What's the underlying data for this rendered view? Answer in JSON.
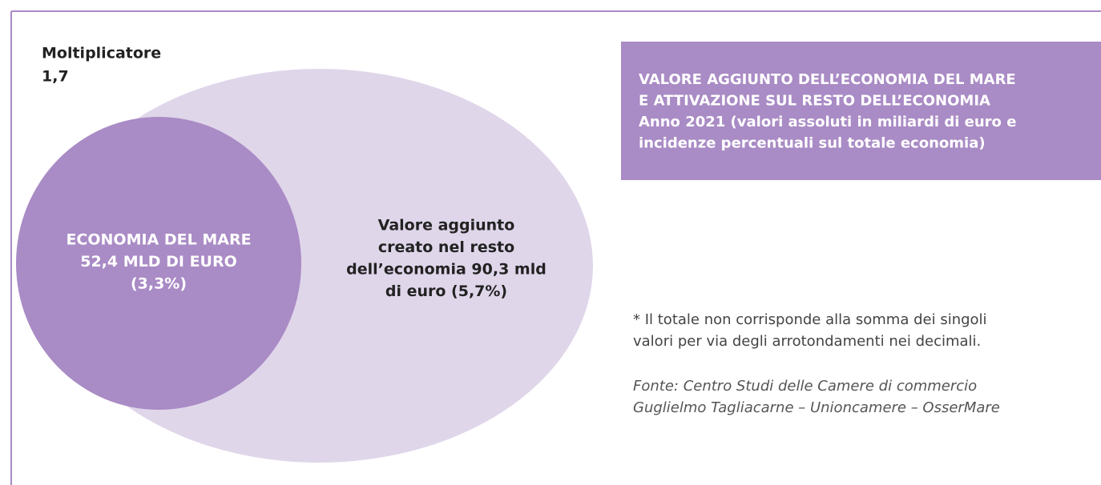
{
  "multiplier": {
    "label": "Moltiplicatore",
    "value": "1,7"
  },
  "inner": {
    "lines": [
      "ECONOMIA DEL MARE",
      "52,4 MLD DI EURO",
      "(3,3%)"
    ]
  },
  "outer": {
    "lines": [
      "Valore aggiunto",
      "creato nel resto",
      "dell’economia 90,3 mld",
      "di euro (5,7%)"
    ]
  },
  "title_box": {
    "lines": [
      "VALORE AGGIUNTO DELL’ECONOMIA DEL MARE",
      "E ATTIVAZIONE SUL RESTO DELL’ECONOMIA",
      "Anno 2021 (valori assoluti in miliardi di euro e",
      "incidenze percentuali sul totale economia)"
    ]
  },
  "note": {
    "lines": [
      "* Il totale non corrisponde alla somma dei singoli",
      "valori per via degli arrotondamenti nei decimali."
    ]
  },
  "source": {
    "lines": [
      "Fonte: Centro Studi delle Camere di commercio",
      "Guglielmo Tagliacarne – Unioncamere – OsserMare"
    ]
  }
}
